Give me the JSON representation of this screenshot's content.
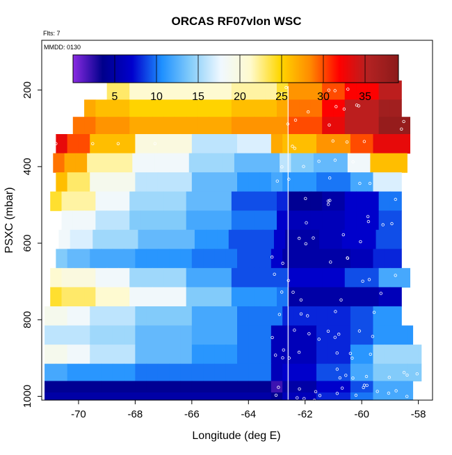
{
  "chart_data": {
    "type": "heatmap",
    "title": "ORCAS RF07vlon WSC",
    "flights_note": "Flts: 7",
    "date_note": "MMDD: 0130",
    "xlabel": "Longitude (deg E)",
    "ylabel": "PSXC (mbar)",
    "xlim": [
      -71.3,
      -57.5
    ],
    "ylim": [
      1010,
      70
    ],
    "x_ticks": [
      -70,
      -68,
      -66,
      -64,
      -62,
      -60,
      -58
    ],
    "y_ticks": [
      200,
      400,
      600,
      800,
      1000
    ],
    "colorbar": {
      "range": [
        0,
        39
      ],
      "ticks": [
        5,
        10,
        15,
        20,
        25,
        30,
        35
      ],
      "colors": [
        "#8a2be2",
        "#00008b",
        "#0000cd",
        "#1e90ff",
        "#87cefa",
        "#f0f8ff",
        "#fffacd",
        "#ffd700",
        "#ff8c00",
        "#ff0000",
        "#b22222",
        "#8b1a1a"
      ]
    },
    "divider_longitude": -62.6,
    "x_breaks": [
      -70.5,
      -69.5,
      -68,
      -66,
      -64.5,
      -63,
      -62.6,
      -61.5,
      -60.5,
      -59.5,
      -58.5
    ],
    "rows": [
      {
        "p": 200,
        "start": -69.0,
        "end": -58.6,
        "v": [
          26,
          25,
          23,
          21,
          21,
          22,
          24,
          28,
          30,
          32,
          35
        ]
      },
      {
        "p": 250,
        "start": -69.8,
        "end": -58.6,
        "v": [
          28,
          27,
          26,
          25,
          25,
          26,
          27,
          29,
          32,
          35,
          37
        ]
      },
      {
        "p": 290,
        "start": -70.2,
        "end": -58.3,
        "v": [
          30,
          29,
          28,
          27,
          27,
          28,
          28,
          30,
          33,
          35,
          38
        ]
      },
      {
        "p": 340,
        "start": -70.8,
        "end": -58.3,
        "v": [
          33,
          30,
          26,
          20,
          16,
          17,
          27,
          26,
          28,
          30,
          33
        ]
      },
      {
        "p": 390,
        "start": -70.9,
        "end": -58.4,
        "v": [
          29,
          27,
          22,
          18,
          15,
          13,
          16,
          14,
          13,
          18,
          26
        ]
      },
      {
        "p": 440,
        "start": -70.8,
        "end": -58.6,
        "v": [
          26,
          23,
          19,
          16,
          13,
          11,
          12,
          11,
          10,
          12,
          17
        ]
      },
      {
        "p": 490,
        "start": -71.0,
        "end": -58.6,
        "v": [
          24,
          22,
          18,
          15,
          13,
          9,
          8,
          4,
          5,
          7,
          10
        ]
      },
      {
        "p": 540,
        "start": -70.6,
        "end": -58.6,
        "v": [
          20,
          18,
          16,
          14,
          12,
          10,
          7,
          6,
          6,
          7,
          9
        ]
      },
      {
        "p": 590,
        "start": -70.7,
        "end": -58.6,
        "v": [
          18,
          17,
          15,
          13,
          11,
          9,
          7,
          5,
          6,
          7,
          9
        ]
      },
      {
        "p": 640,
        "start": -70.8,
        "end": -58.6,
        "v": [
          14,
          13,
          12,
          11,
          10,
          9,
          7,
          5,
          5,
          6,
          8
        ]
      },
      {
        "p": 690,
        "start": -71.0,
        "end": -58.3,
        "v": [
          21,
          20,
          18,
          15,
          12,
          9,
          9,
          7,
          7,
          9,
          12
        ]
      },
      {
        "p": 740,
        "start": -71.0,
        "end": -58.6,
        "v": [
          24,
          23,
          21,
          18,
          14,
          11,
          10,
          5,
          5,
          5,
          6
        ]
      },
      {
        "p": 790,
        "start": -71.2,
        "end": -58.6,
        "v": [
          19,
          18,
          16,
          14,
          12,
          10,
          10,
          8,
          8,
          9,
          11
        ]
      },
      {
        "p": 840,
        "start": -71.2,
        "end": -58.2,
        "v": [
          16,
          16,
          15,
          13,
          12,
          10,
          6,
          6,
          8,
          9,
          11
        ]
      },
      {
        "p": 890,
        "start": -71.2,
        "end": -57.9,
        "v": [
          19,
          18,
          16,
          13,
          11,
          10,
          6,
          6,
          8,
          11,
          15
        ]
      },
      {
        "p": 940,
        "start": -71.2,
        "end": -57.9,
        "v": [
          12,
          11,
          11,
          10,
          10,
          10,
          6,
          7,
          9,
          12,
          14
        ]
      },
      {
        "p": 980,
        "start": -71.2,
        "end": -58.2,
        "v": [
          4,
          4,
          4,
          4,
          4,
          4,
          2,
          5,
          7,
          9,
          12
        ]
      },
      {
        "p": 1000,
        "start": -71.2,
        "end": -58.2,
        "v": [
          5,
          5,
          5,
          5,
          5,
          5,
          4,
          6,
          8,
          10,
          12
        ]
      }
    ]
  }
}
